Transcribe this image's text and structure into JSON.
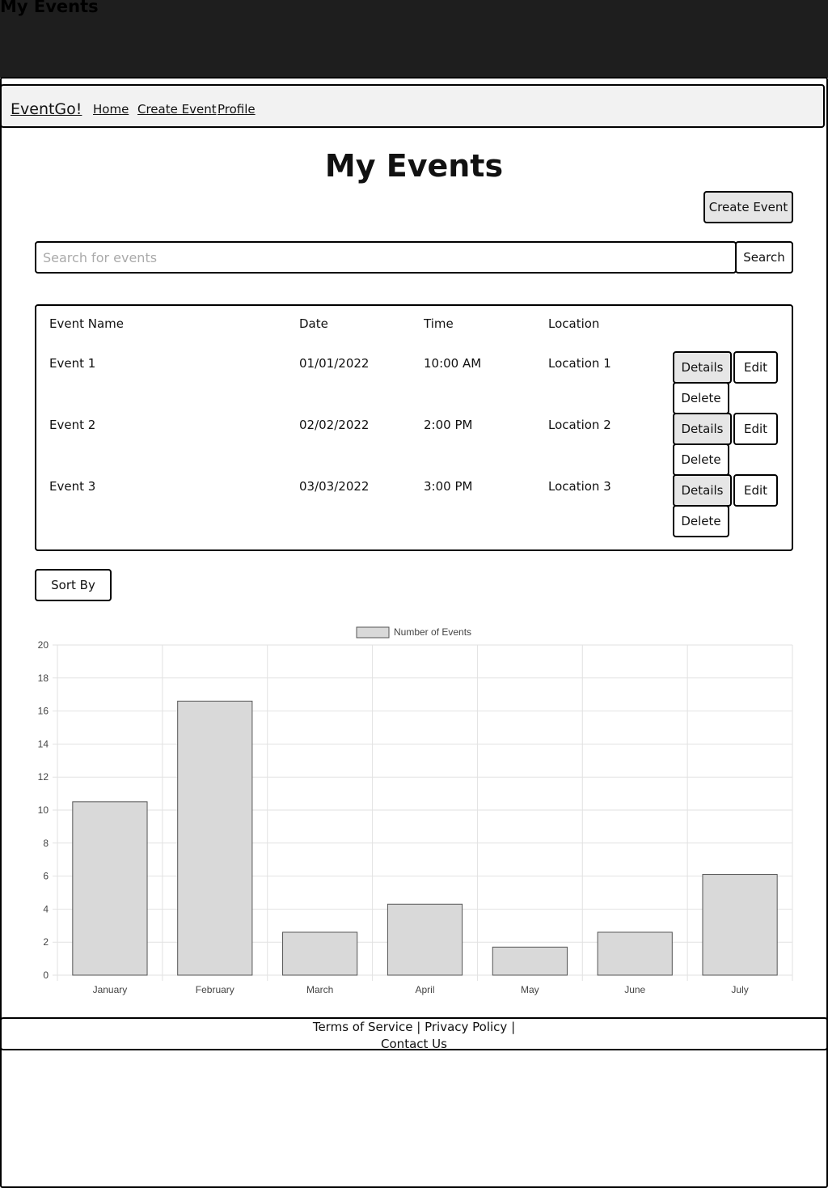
{
  "window": {
    "title": "My Events"
  },
  "nav": {
    "brand": "EventGo!",
    "links": [
      "Home",
      "Create Event",
      "Profile"
    ]
  },
  "page": {
    "title": "My Events",
    "create_button": "Create Event",
    "search_placeholder": "Search for events",
    "search_button": "Search",
    "sort_button": "Sort By"
  },
  "table": {
    "headers": [
      "Event Name",
      "Date",
      "Time",
      "Location"
    ],
    "rows": [
      {
        "name": "Event 1",
        "date": "01/01/2022",
        "time": "10:00 AM",
        "location": "Location 1"
      },
      {
        "name": "Event 2",
        "date": "02/02/2022",
        "time": "2:00 PM",
        "location": "Location 2"
      },
      {
        "name": "Event 3",
        "date": "03/03/2022",
        "time": "3:00 PM",
        "location": "Location 3"
      }
    ],
    "actions": {
      "details": "Details",
      "edit": "Edit",
      "delete": "Delete"
    }
  },
  "chart_data": {
    "type": "bar",
    "categories": [
      "January",
      "February",
      "March",
      "April",
      "May",
      "June",
      "July"
    ],
    "series": [
      {
        "name": "Number of Events",
        "values": [
          10.5,
          16.6,
          2.6,
          4.3,
          1.7,
          2.6,
          6.1
        ]
      }
    ],
    "ylim": [
      0,
      20
    ],
    "yticks": [
      0,
      2,
      4,
      6,
      8,
      10,
      12,
      14,
      16,
      18,
      20
    ],
    "grid": true,
    "legend": "top-center",
    "colors": {
      "bar_fill": "#d9d9d9",
      "bar_stroke": "#555555",
      "grid": "#e2e2e2"
    }
  },
  "footer": {
    "terms": "Terms of Service",
    "privacy": "Privacy Policy",
    "contact": "Contact Us",
    "separator": "|"
  }
}
